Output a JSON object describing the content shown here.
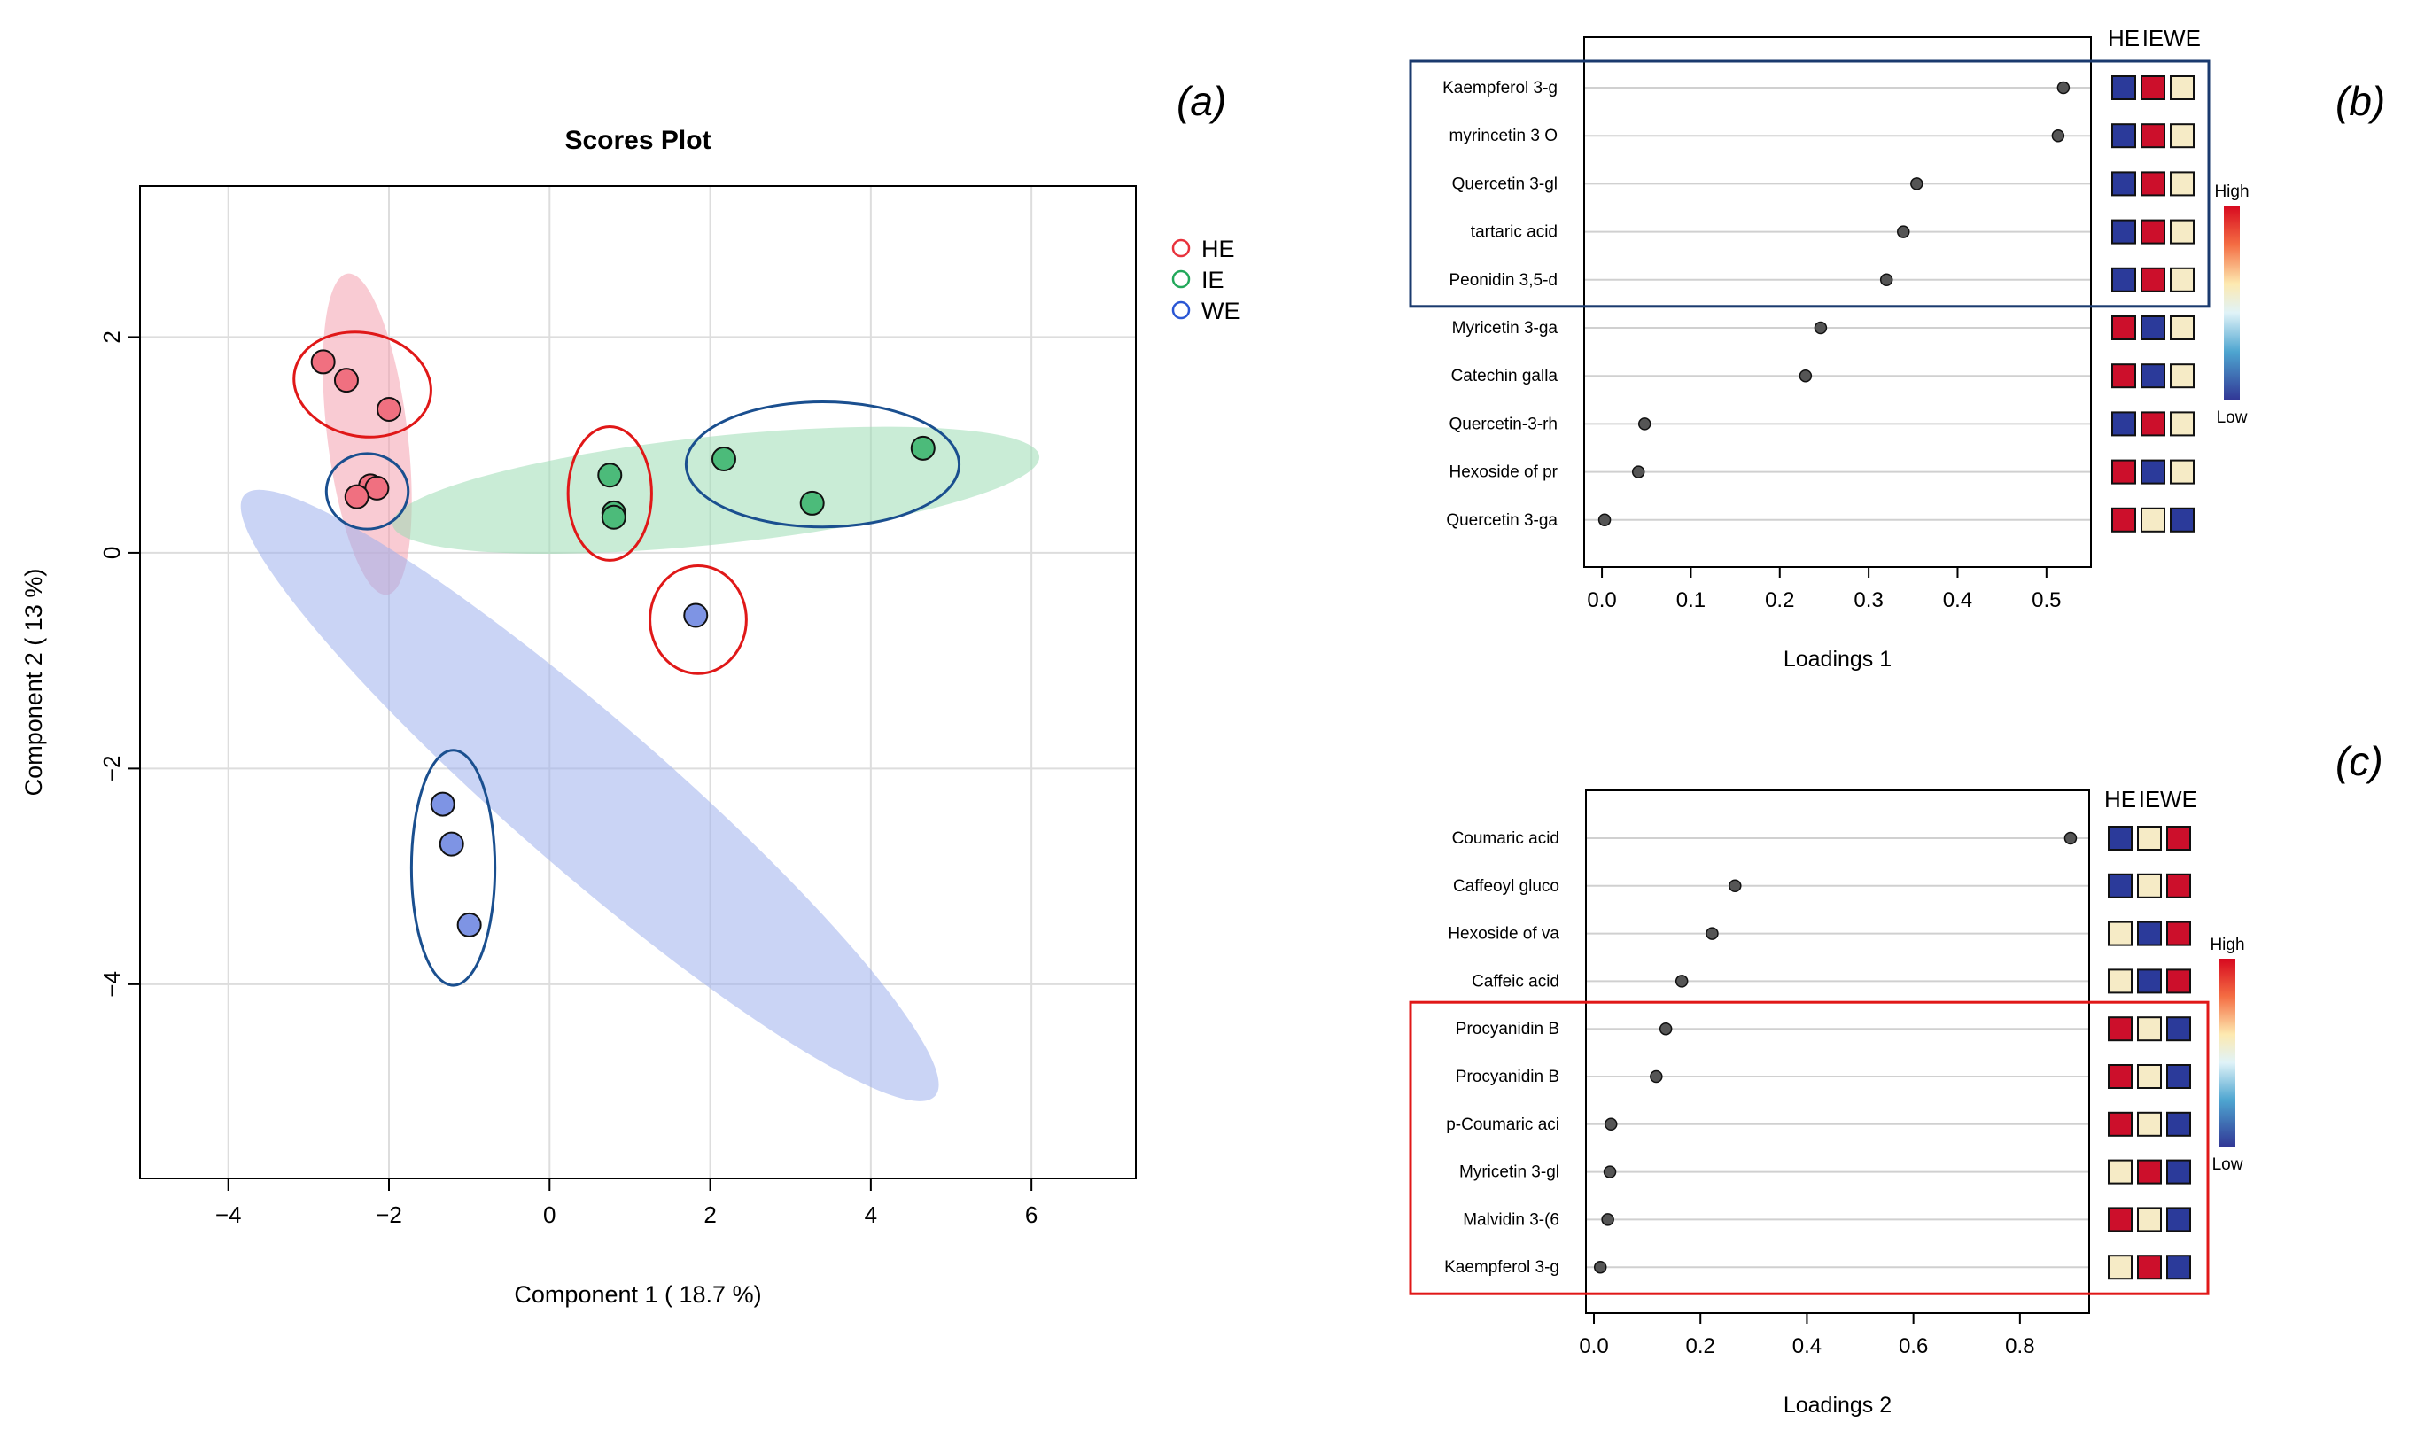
{
  "panel_labels": [
    "(a)",
    "(b)",
    "(c)"
  ],
  "chart_data": [
    {
      "type": "scatter",
      "title": "Scores Plot",
      "xlabel": "Component 1 ( 18.7 %)",
      "ylabel": "Component 2 ( 13 %)",
      "xlim": [
        -5.1,
        7.3
      ],
      "ylim": [
        -5.8,
        3.4
      ],
      "xticks": [
        -4,
        -2,
        0,
        2,
        4,
        6
      ],
      "yticks": [
        -4,
        -2,
        0,
        2
      ],
      "grid": true,
      "legend": {
        "position": "right",
        "entries": [
          {
            "name": "HE",
            "color": "#e8323c"
          },
          {
            "name": "IE",
            "color": "#22a85a"
          },
          {
            "name": "WE",
            "color": "#2a56d4"
          }
        ]
      },
      "series": [
        {
          "name": "HE",
          "fill": "#f07080",
          "points": [
            [
              -2.82,
              1.77
            ],
            [
              -2.53,
              1.6
            ],
            [
              -2.0,
              1.33
            ],
            [
              -2.23,
              0.62
            ],
            [
              -2.15,
              0.6
            ],
            [
              -2.4,
              0.52
            ]
          ]
        },
        {
          "name": "IE",
          "fill": "#4cbb7a",
          "points": [
            [
              0.75,
              0.72
            ],
            [
              0.8,
              0.37
            ],
            [
              0.8,
              0.33
            ],
            [
              2.17,
              0.87
            ],
            [
              3.27,
              0.46
            ],
            [
              4.65,
              0.97
            ]
          ]
        },
        {
          "name": "WE",
          "fill": "#7e94e4",
          "points": [
            [
              1.82,
              -0.58
            ],
            [
              -1.33,
              -2.33
            ],
            [
              -1.22,
              -2.7
            ],
            [
              -1.0,
              -3.45
            ]
          ]
        }
      ],
      "confidence_ellipses": [
        {
          "group": "HE",
          "cx": -2.27,
          "cy": 1.1,
          "rx": 0.5,
          "ry": 1.5,
          "angle_deg": 7,
          "color": "#f4a0ae"
        },
        {
          "group": "IE",
          "cx": 2.07,
          "cy": 0.58,
          "rx": 4.05,
          "ry": 0.5,
          "angle_deg": 6,
          "color": "#9cdcb4"
        },
        {
          "group": "WE",
          "cx": 0.5,
          "cy": -2.25,
          "rx": 5.7,
          "ry": 0.7,
          "angle_deg": -41,
          "color": "#9eb0ec"
        }
      ],
      "annotations": [
        {
          "color": "#e01818",
          "cx": -2.33,
          "cy": 1.56,
          "rx": 0.86,
          "ry": 0.48,
          "angle_deg": -11
        },
        {
          "color": "#1a4f8f",
          "cx": -2.27,
          "cy": 0.57,
          "rx": 0.51,
          "ry": 0.35,
          "angle_deg": 0
        },
        {
          "color": "#e01818",
          "cx": 0.75,
          "cy": 0.55,
          "rx": 0.52,
          "ry": 0.62,
          "angle_deg": 0
        },
        {
          "color": "#e01818",
          "cx": 1.85,
          "cy": -0.62,
          "rx": 0.6,
          "ry": 0.5,
          "angle_deg": 0
        },
        {
          "color": "#1a4f8f",
          "cx": 3.4,
          "cy": 0.82,
          "rx": 1.7,
          "ry": 0.58,
          "angle_deg": 0
        },
        {
          "color": "#1a4f8f",
          "cx": -1.2,
          "cy": -2.92,
          "rx": 0.52,
          "ry": 1.09,
          "angle_deg": 0
        }
      ]
    },
    {
      "type": "dot",
      "xlabel": "Loadings 1",
      "xlim": [
        -0.02,
        0.55
      ],
      "xticks": [
        0.0,
        0.1,
        0.2,
        0.3,
        0.4,
        0.5
      ],
      "heatmap_columns": [
        "HE",
        "IE",
        "WE"
      ],
      "heatmap_legend": {
        "high": "High",
        "low": "Low"
      },
      "highlight_box": {
        "rows": [
          0,
          4
        ],
        "color": "#1a3a6e"
      },
      "features": [
        {
          "name": "Kaempferol 3-g",
          "value": 0.519,
          "levels": [
            "low",
            "high",
            "mid"
          ]
        },
        {
          "name": "myrincetin 3 O",
          "value": 0.513,
          "levels": [
            "low",
            "high",
            "mid"
          ]
        },
        {
          "name": "Quercetin 3-gl",
          "value": 0.354,
          "levels": [
            "low",
            "high",
            "mid"
          ]
        },
        {
          "name": "tartaric acid",
          "value": 0.339,
          "levels": [
            "low",
            "high",
            "mid"
          ]
        },
        {
          "name": "Peonidin 3,5-d",
          "value": 0.32,
          "levels": [
            "low",
            "high",
            "mid"
          ]
        },
        {
          "name": "Myricetin 3-ga",
          "value": 0.246,
          "levels": [
            "high",
            "low",
            "mid"
          ]
        },
        {
          "name": "Catechin galla",
          "value": 0.229,
          "levels": [
            "high",
            "low",
            "mid"
          ]
        },
        {
          "name": "Quercetin-3-rh",
          "value": 0.048,
          "levels": [
            "low",
            "high",
            "mid"
          ]
        },
        {
          "name": "Hexoside of pr",
          "value": 0.041,
          "levels": [
            "high",
            "low",
            "mid"
          ]
        },
        {
          "name": "Quercetin 3-ga",
          "value": 0.003,
          "levels": [
            "high",
            "mid",
            "low"
          ]
        }
      ]
    },
    {
      "type": "dot",
      "xlabel": "Loadings 2",
      "xlim": [
        -0.015,
        0.93
      ],
      "xticks": [
        0.0,
        0.2,
        0.4,
        0.6,
        0.8
      ],
      "heatmap_columns": [
        "HE",
        "IE",
        "WE"
      ],
      "heatmap_legend": {
        "high": "High",
        "low": "Low"
      },
      "highlight_box": {
        "rows": [
          4,
          9
        ],
        "color": "#e01818"
      },
      "features": [
        {
          "name": "Coumaric acid",
          "value": 0.895,
          "levels": [
            "low",
            "mid",
            "high"
          ]
        },
        {
          "name": "Caffeoyl gluco",
          "value": 0.265,
          "levels": [
            "low",
            "mid",
            "high"
          ]
        },
        {
          "name": "Hexoside of va",
          "value": 0.222,
          "levels": [
            "mid",
            "low",
            "high"
          ]
        },
        {
          "name": "Caffeic acid",
          "value": 0.165,
          "levels": [
            "mid",
            "low",
            "high"
          ]
        },
        {
          "name": "Procyanidin B",
          "value": 0.135,
          "levels": [
            "high",
            "mid",
            "low"
          ]
        },
        {
          "name": "Procyanidin B",
          "value": 0.117,
          "levels": [
            "high",
            "mid",
            "low"
          ]
        },
        {
          "name": "p-Coumaric aci",
          "value": 0.032,
          "levels": [
            "high",
            "mid",
            "low"
          ]
        },
        {
          "name": "Myricetin 3-gl",
          "value": 0.03,
          "levels": [
            "mid",
            "high",
            "low"
          ]
        },
        {
          "name": "Malvidin 3-(6",
          "value": 0.026,
          "levels": [
            "high",
            "mid",
            "low"
          ]
        },
        {
          "name": "Kaempferol 3-g",
          "value": 0.012,
          "levels": [
            "mid",
            "high",
            "low"
          ]
        }
      ]
    }
  ]
}
